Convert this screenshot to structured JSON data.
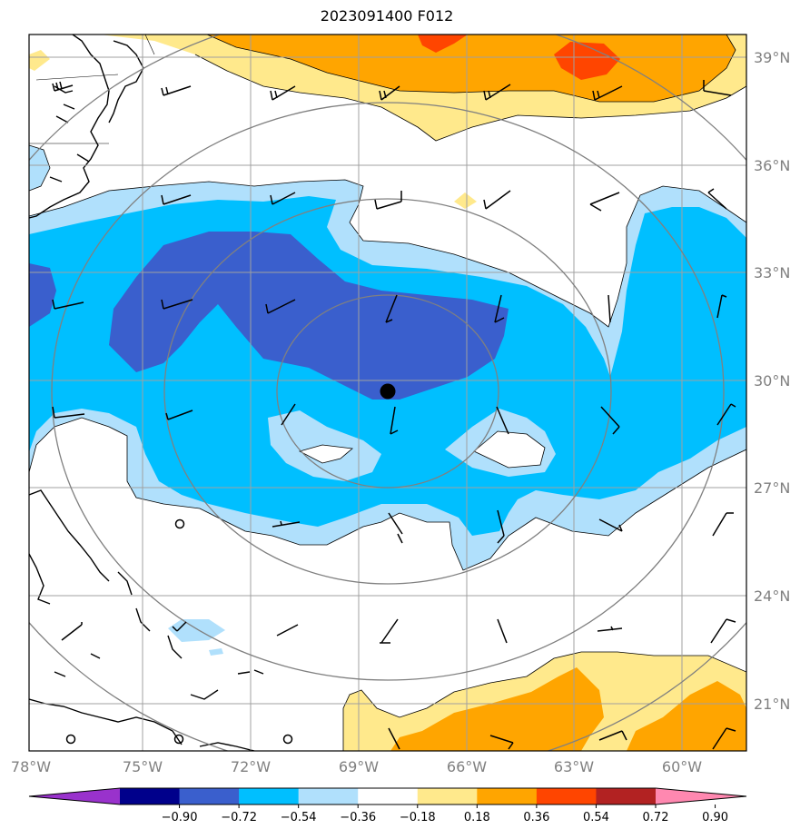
{
  "title": "2023091400 F012",
  "lat_labels": [
    "39°N",
    "36°N",
    "33°N",
    "30°N",
    "27°N",
    "24°N",
    "21°N"
  ],
  "lon_labels": [
    "78°W",
    "75°W",
    "72°W",
    "69°W",
    "66°W",
    "63°W",
    "60°W"
  ],
  "colorbar": {
    "ticks": [
      "−0.90",
      "−0.72",
      "−0.54",
      "−0.36",
      "−0.18",
      "0.18",
      "0.36",
      "0.54",
      "0.72",
      "0.90"
    ],
    "colors": [
      "#9932cc",
      "#00008b",
      "#3a5fcd",
      "#00bfff",
      "#b0e0fc",
      "#ffffff",
      "#ffe98c",
      "#ffa500",
      "#ff4500",
      "#b22222",
      "#ff88b0"
    ]
  },
  "palette": {
    "dark_blue": "#3a5fcd",
    "blue": "#00bfff",
    "light_blue": "#b0e0fc",
    "yellow": "#ffe98c",
    "orange": "#ffa500",
    "red_orange": "#ff4500",
    "grid": "#a0a0a0",
    "ring": "#808080"
  },
  "storm_center": {
    "lon": -68.2,
    "lat": 29.7
  }
}
